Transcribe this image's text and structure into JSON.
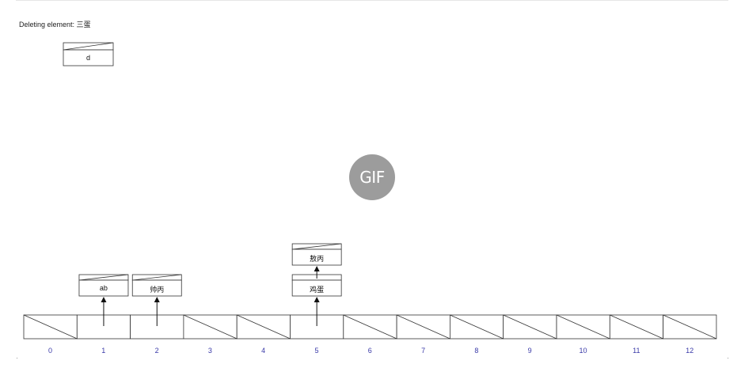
{
  "status": {
    "text": "Deleting element: 三蛋"
  },
  "deleting_node": {
    "value": "d"
  },
  "badge": {
    "text": "GIF"
  },
  "buckets": [
    "0",
    "1",
    "2",
    "3",
    "4",
    "5",
    "6",
    "7",
    "8",
    "9",
    "10",
    "11",
    "12"
  ],
  "chains": [
    {
      "bucket": 1,
      "nodes": [
        "ab"
      ]
    },
    {
      "bucket": 2,
      "nodes": [
        "帅丙"
      ]
    },
    {
      "bucket": 5,
      "nodes": [
        "鸡蛋",
        "敖丙"
      ]
    }
  ]
}
